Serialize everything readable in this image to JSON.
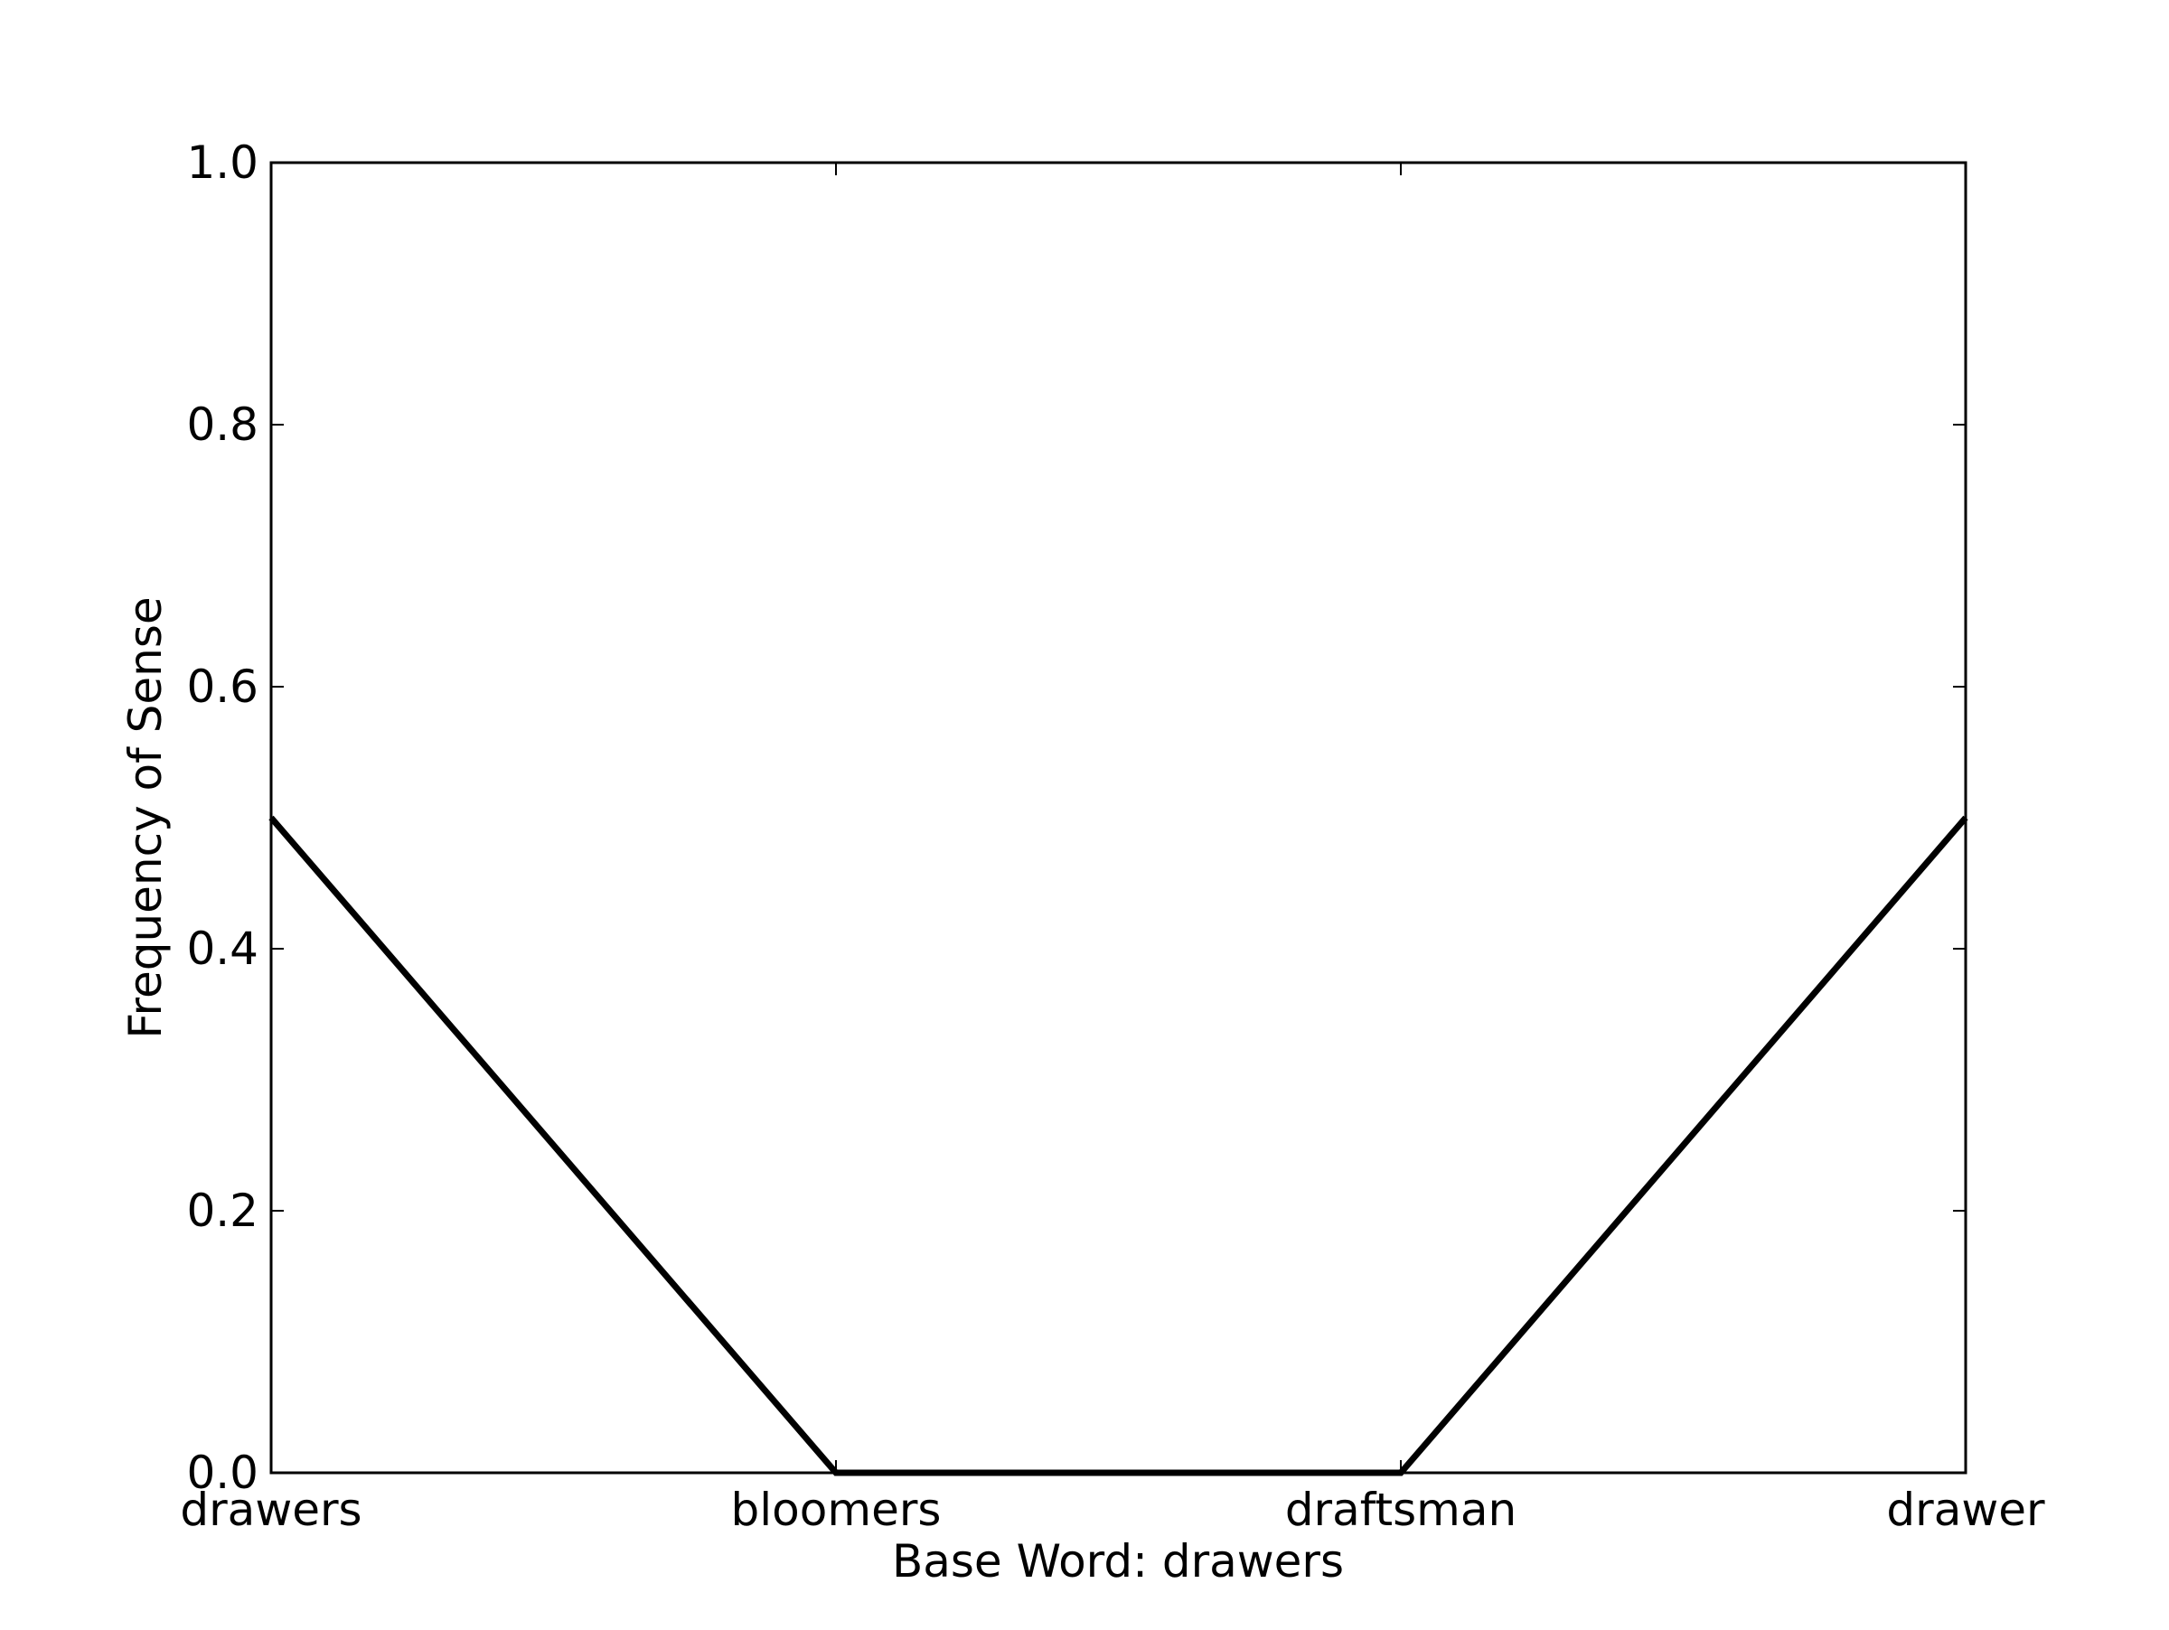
{
  "chart_data": {
    "type": "line",
    "title": "",
    "xlabel": "Base Word: drawers",
    "ylabel": "Frequency of Sense",
    "categories": [
      "drawers",
      "bloomers",
      "draftsman",
      "drawer"
    ],
    "series": [
      {
        "values": [
          0.5,
          0.0,
          0.0,
          0.5
        ]
      }
    ],
    "ylim": [
      0,
      1.0
    ],
    "yticks": [
      0.0,
      0.2,
      0.4,
      0.6,
      0.8,
      1.0
    ],
    "ytick_labels": [
      "0.0",
      "0.2",
      "0.4",
      "0.6",
      "0.8",
      "1.0"
    ],
    "grid": false,
    "line_color": "#000000",
    "axis_color": "#000000",
    "background": "#ffffff"
  }
}
